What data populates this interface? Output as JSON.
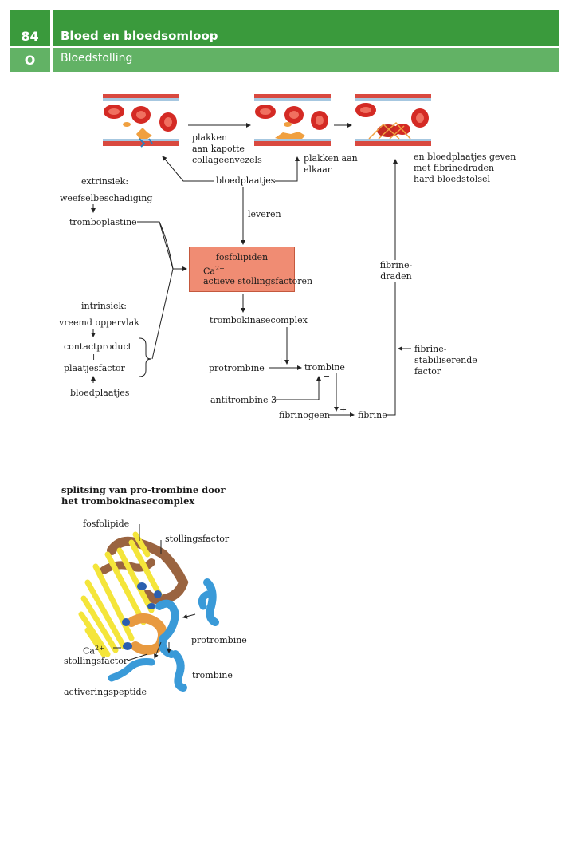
{
  "header": {
    "page_number": "84",
    "chapter_title": "Bloed en bloedsomloop",
    "section_letter": "O",
    "section_title": "Bloedstolling"
  },
  "diagram": {
    "panel_labels": {
      "plakken_collageen": [
        "plakken",
        "aan kapotte",
        "collageenvezels"
      ],
      "plakken_elkaar": [
        "plakken aan",
        "elkaar"
      ],
      "bloedstolsel": [
        "en bloedplaatjes geven",
        "met fibrinedraden",
        "hard bloedstolsel"
      ]
    },
    "bloedplaatjes_top": "bloedplaatjes",
    "leveren": "leveren",
    "extrinsiek": "extrinsiek:",
    "weefselbeschadiging": "weefselbeschadiging",
    "tromboplastine": "tromboplastine",
    "box": {
      "line1": "fosfolipiden",
      "line2": "Ca",
      "line2_sup": "2+",
      "line3": "actieve stollingsfactoren"
    },
    "intrinsiek": "intrinsiek:",
    "vreemd_oppervlak": "vreemd oppervlak",
    "contactproduct": "contactproduct",
    "plus_small": "+",
    "plaatjesfactor": "plaatjesfactor",
    "bloedplaatjes_bottom": "bloedplaatjes",
    "trombokinasecomplex": "trombokinasecomplex",
    "protrombine": "protrombine",
    "trombine": "trombine",
    "antitrombine": "antitrombine 3",
    "fibrinogeen": "fibrinogeen",
    "fibrine": "fibrine",
    "fibrine_draden": [
      "fibrine-",
      "draden"
    ],
    "stabiliserende": [
      "fibrine-",
      "stabiliserende",
      "factor"
    ],
    "plus": "+",
    "minus": "−"
  },
  "figure2": {
    "title": [
      "splitsing van pro-trombine door",
      "het trombokinasecomplex"
    ],
    "fosfolipide": "fosfolipide",
    "stollingsfactor_top": "stollingsfactor",
    "ca": "Ca",
    "ca_sup": "2+",
    "stollingsfactor_bottom": "stollingsfactor",
    "protrombine": "protrombine",
    "trombine": "trombine",
    "activeringspeptide": "activeringspeptide"
  },
  "colors": {
    "header_dark": "#3a9a3c",
    "header_light": "#62b265",
    "box_fill": "#f08c73",
    "red_cell": "#d42a24",
    "platelet": "#f0a040",
    "yellow": "#f4e53a",
    "brown": "#9a6440",
    "blue": "#3a9ad8",
    "orange": "#e89a40"
  }
}
